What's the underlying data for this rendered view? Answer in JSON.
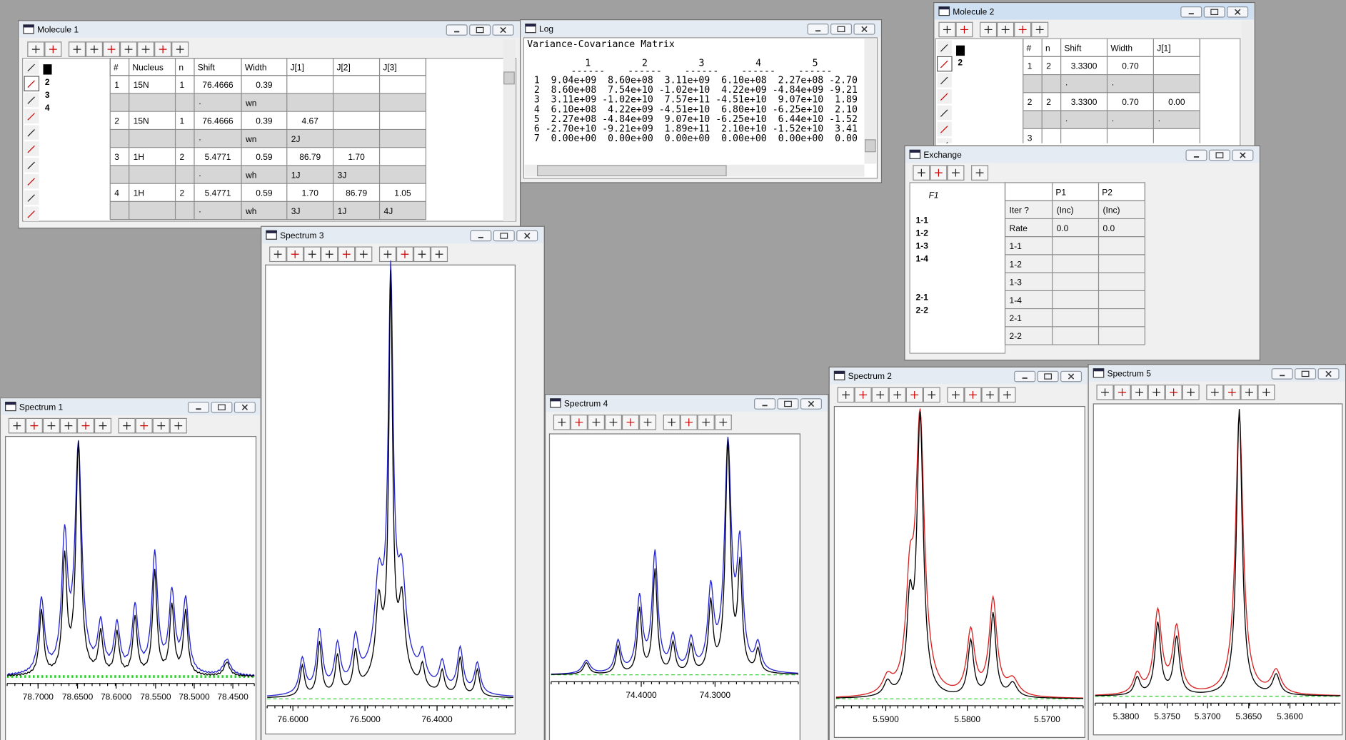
{
  "molecule1": {
    "title": "Molecule 1",
    "atoms": [
      "1",
      "2",
      "3",
      "4"
    ],
    "table": {
      "headers": [
        "#",
        "Nucleus",
        "n",
        "Shift",
        "Width",
        "J[1]",
        "J[2]",
        "J[3]"
      ],
      "rows": [
        {
          "color": "#0000e0",
          "cells": [
            "1",
            "15N",
            "1",
            "76.4666",
            "0.39",
            null,
            null,
            null
          ]
        },
        {
          "color": "#0000e0",
          "cells": [
            null,
            null,
            null,
            "·",
            "wn",
            null,
            null,
            null
          ]
        },
        {
          "color": "#0000e0",
          "cells": [
            "2",
            "15N",
            "1",
            "76.4666",
            "0.39",
            "4.67",
            null,
            null
          ]
        },
        {
          "color": "#0000e0",
          "cells": [
            null,
            null,
            null,
            "·",
            "wn",
            "2J",
            null,
            null
          ]
        },
        {
          "color": "#e00000",
          "cells": [
            "3",
            "1H",
            "2",
            "5.4771",
            "0.59",
            "86.79",
            "1.70",
            null
          ]
        },
        {
          "color": "#e00000",
          "cells": [
            null,
            null,
            null,
            "·",
            "wh",
            "1J",
            "3J",
            null
          ]
        },
        {
          "color": "#e00000",
          "cells": [
            "4",
            "1H",
            "2",
            "5.4771",
            "0.59",
            "1.70",
            "86.79",
            "1.05"
          ]
        },
        {
          "color": "#e00000",
          "cells": [
            null,
            null,
            null,
            "·",
            "wh",
            "3J",
            "1J",
            "4J"
          ]
        }
      ]
    }
  },
  "log": {
    "title": "Log",
    "heading": "Variance-Covariance Matrix",
    "columns": [
      "1",
      "2",
      "3",
      "4",
      "5"
    ],
    "column_rule": "------",
    "rows": [
      "1  9.04e+09  8.60e+08  3.11e+09  6.10e+08  2.27e+08 -2.70",
      "2  8.60e+08  7.54e+10 -1.02e+10  4.22e+09 -4.84e+09 -9.21",
      "3  3.11e+09 -1.02e+10  7.57e+11 -4.51e+10  9.07e+10  1.89",
      "4  6.10e+08  4.22e+09 -4.51e+10  6.80e+10 -6.25e+10  2.10",
      "5  2.27e+08 -4.84e+09  9.07e+10 -6.25e+10  6.44e+10 -1.52",
      "6 -2.70e+10 -9.21e+09  1.89e+11  2.10e+10 -1.52e+10  3.41",
      "7  0.00e+00  0.00e+00  0.00e+00  0.00e+00  0.00e+00  0.00"
    ]
  },
  "molecule2": {
    "title": "Molecule 2",
    "atoms": [
      "1",
      "2"
    ],
    "table": {
      "headers": [
        "#",
        "n",
        "Shift",
        "Width",
        "J[1]"
      ],
      "rows": [
        {
          "color": "#e00000",
          "cells": [
            "1",
            "2",
            "3.3300",
            "0.70",
            null
          ]
        },
        {
          "color": "#e00000",
          "cells": [
            null,
            null,
            "·",
            "·",
            null
          ]
        },
        {
          "color": "#e00000",
          "cells": [
            "2",
            "2",
            "3.3300",
            "0.70",
            "0.00"
          ]
        },
        {
          "color": "#e00000",
          "cells": [
            null,
            null,
            "·",
            "·",
            "·"
          ]
        },
        {
          "cells": [
            "3",
            null,
            null,
            null,
            null
          ]
        }
      ]
    }
  },
  "exchange": {
    "title": "Exchange",
    "label": "F1",
    "groups": [
      "1-1",
      "1-2",
      "1-3",
      "1-4",
      "2-1",
      "2-2"
    ],
    "table": {
      "headers": [
        null,
        "P1",
        "P2"
      ],
      "rows": [
        {
          "cells": [
            "Iter ?",
            "(Inc)",
            "(Inc)"
          ]
        },
        {
          "cells": [
            "Rate",
            "0.0",
            "0.0"
          ]
        },
        {
          "color": "#0000e0",
          "cells": [
            "1-1",
            null,
            null
          ]
        },
        {
          "color": "#0000e0",
          "cells": [
            "1-2",
            null,
            null
          ]
        },
        {
          "color": "#e00000",
          "cells": [
            "1-3",
            null,
            null
          ]
        },
        {
          "color": "#e00000",
          "cells": [
            "1-4",
            null,
            null
          ]
        },
        {
          "color": "#e00000",
          "cells": [
            "2-1",
            null,
            null
          ]
        },
        {
          "color": "#e00000",
          "cells": [
            "2-2",
            null,
            null
          ]
        }
      ]
    }
  },
  "spectra": [
    {
      "title": "Spectrum 1",
      "xticks": [
        "78.7000",
        "78.6500",
        "78.6000",
        "78.5500",
        "78.5000",
        "78.4500"
      ]
    },
    {
      "title": "Spectrum 3",
      "xticks": [
        "76.6000",
        "76.5000",
        "76.4000"
      ]
    },
    {
      "title": "Spectrum 4",
      "xticks": [
        "74.4000",
        "74.3000"
      ]
    },
    {
      "title": "Spectrum 2",
      "xticks": [
        "5.5900",
        "5.5800",
        "5.5700"
      ]
    },
    {
      "title": "Spectrum 5",
      "xticks": [
        "5.3800",
        "5.3750",
        "5.3700",
        "5.3650",
        "5.3600"
      ]
    }
  ]
}
